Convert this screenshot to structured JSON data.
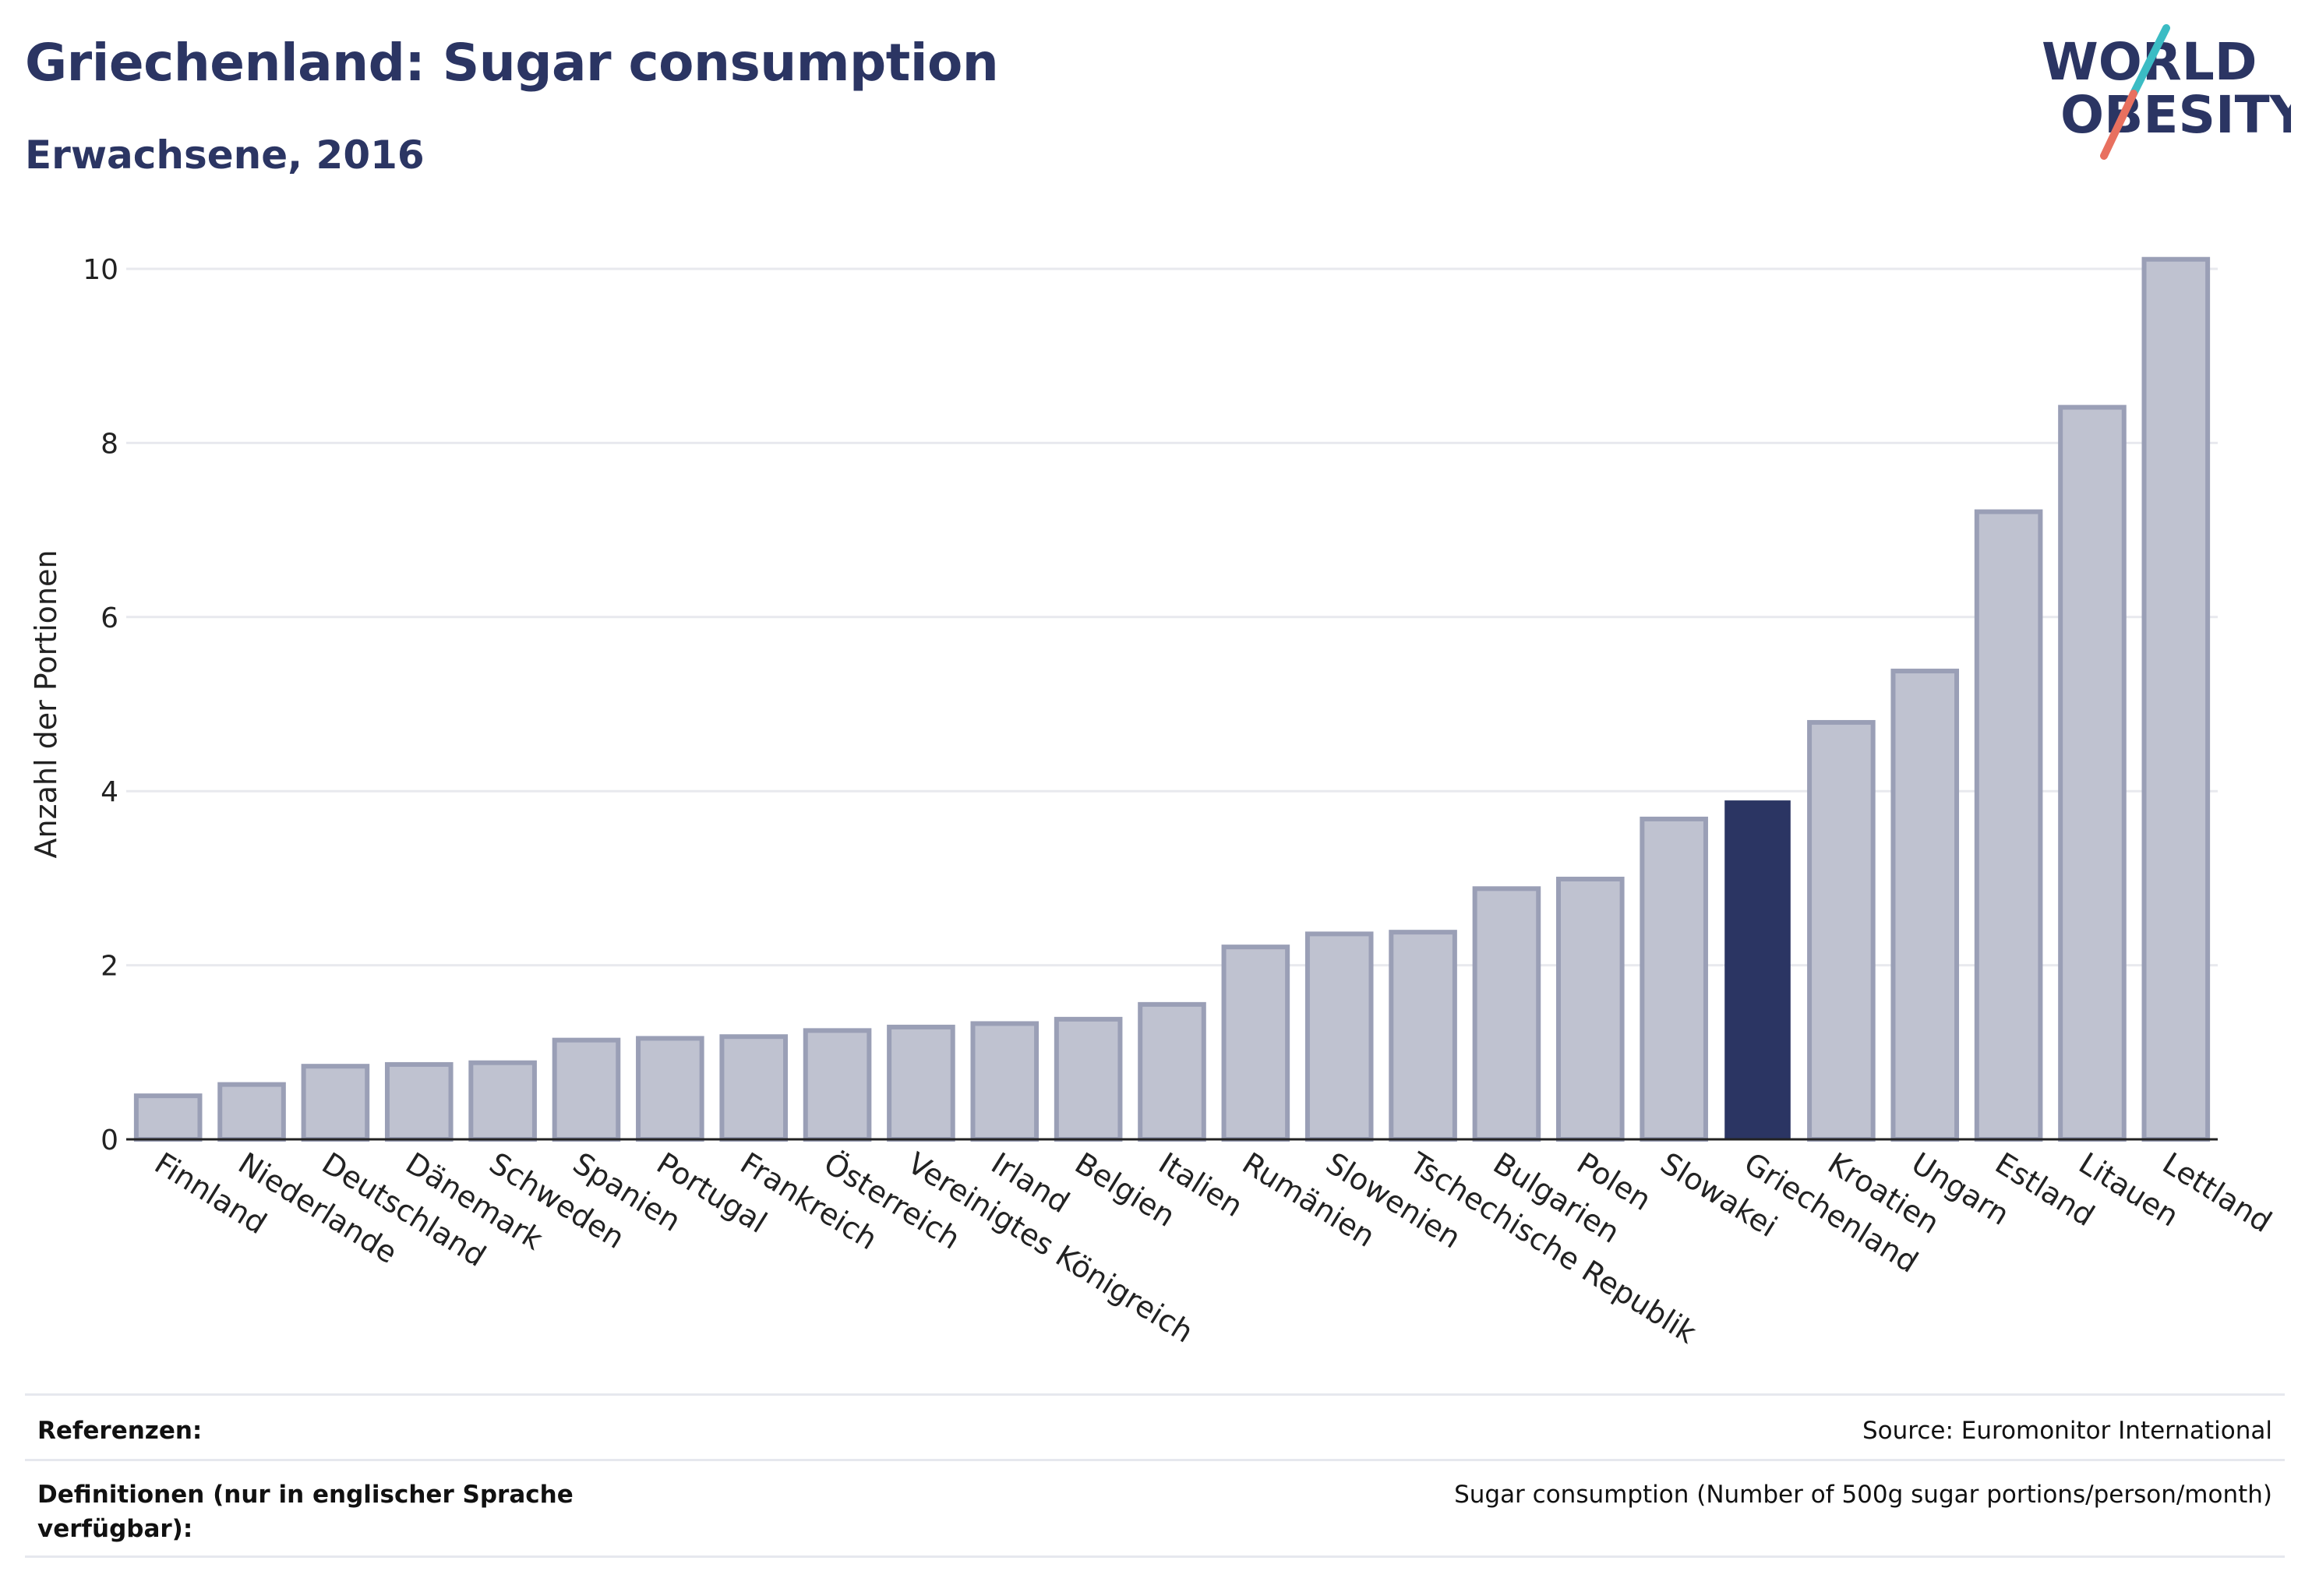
{
  "header": {
    "title": "Griechenland: Sugar consumption",
    "subtitle": "Erwachsene, 2016"
  },
  "logo": {
    "line1": "WORLD",
    "line2": "OBESITY",
    "accent_teal": "#3bbcc4",
    "accent_coral": "#e8705f",
    "text_color": "#2b3563"
  },
  "chart_data": {
    "type": "bar",
    "ylabel": "Anzahl der Portionen",
    "ylim": [
      0,
      10.6
    ],
    "yticks": [
      0,
      2,
      4,
      6,
      8,
      10
    ],
    "grid": true,
    "highlight_category": "Griechenland",
    "colors": {
      "bar": "#bfc2d0",
      "bar_border": "#9a9fb6",
      "highlight": "#2b3563",
      "grid": "#e8e9ee",
      "axis": "#222222"
    },
    "categories": [
      "Finnland",
      "Niederlande",
      "Deutschland",
      "Dänemark",
      "Schweden",
      "Spanien",
      "Portugal",
      "Frankreich",
      "Österreich",
      "Vereinigtes Königreich",
      "Irland",
      "Belgien",
      "Italien",
      "Rumänien",
      "Slowenien",
      "Tschechische Republik",
      "Bulgarien",
      "Polen",
      "Slowakei",
      "Griechenland",
      "Kroatien",
      "Ungarn",
      "Estland",
      "Litauen",
      "Lettland"
    ],
    "values": [
      0.5,
      0.63,
      0.84,
      0.86,
      0.88,
      1.14,
      1.16,
      1.18,
      1.25,
      1.29,
      1.33,
      1.38,
      1.55,
      2.21,
      2.36,
      2.38,
      2.88,
      2.99,
      3.68,
      3.88,
      4.79,
      5.38,
      7.21,
      8.41,
      10.11
    ]
  },
  "footer": {
    "references_label": "Referenzen:",
    "references_value": "Source: Euromonitor International",
    "definitions_label_line1": "Definitionen (nur in englischer Sprache",
    "definitions_label_line2": "verfügbar):",
    "definitions_value": "Sugar consumption (Number of 500g sugar portions/person/month)"
  }
}
